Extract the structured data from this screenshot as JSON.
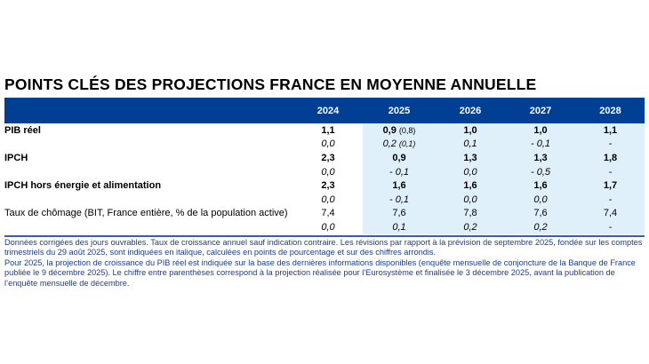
{
  "title": "POINTS CLÉS DES PROJECTIONS FRANCE EN MOYENNE ANNUELLE",
  "columns": [
    "2024",
    "2025",
    "2025",
    "2026",
    "2027",
    "2028"
  ],
  "years": [
    "2024",
    "2025",
    "2026",
    "2027",
    "2028"
  ],
  "rows": [
    {
      "label": "PIB réel",
      "bold": true,
      "values": [
        "1,1",
        "0,9",
        "1,0",
        "1,0",
        "1,1"
      ],
      "note_2025": "(0,8)",
      "revisions": [
        "0,0",
        "0,2",
        "0,1",
        "- 0,1",
        "-"
      ],
      "revision_note_2025": "(0,1)"
    },
    {
      "label": "IPCH",
      "bold": true,
      "values": [
        "2,3",
        "0,9",
        "1,3",
        "1,3",
        "1,8"
      ],
      "revisions": [
        "0,0",
        "- 0,1",
        "0,0",
        "- 0,5",
        "-"
      ]
    },
    {
      "label": "IPCH hors énergie et alimentation",
      "bold": true,
      "values": [
        "2,3",
        "1,6",
        "1,6",
        "1,6",
        "1,7"
      ],
      "revisions": [
        "0,0",
        "- 0,1",
        "0,0",
        "0,0",
        "-"
      ]
    },
    {
      "label": "Taux de chômage (BIT, France entière, % de la population active)",
      "bold": false,
      "values": [
        "7,4",
        "7,6",
        "7,8",
        "7,6",
        "7,4"
      ],
      "revisions": [
        "0,0",
        "0,1",
        "0,2",
        "0,2",
        "-"
      ]
    }
  ],
  "notes": [
    "Données corrigées des jours ouvrables. Taux de croissance annuel sauf indication contraire. Les révisions par rapport à la prévision de septembre 2025, fondée sur les comptes trimestriels du 29 août 2025, sont indiquées en italique, calculées en points de pourcentage et sur des chiffres arrondis.",
    "Pour 2025, la projection de croissance du PIB réel est indiquée sur la base des dernières informations disponibles (enquête mensuelle de conjoncture de la Banque de France publiée le 9 décembre 2025). Le chiffre entre parenthèses correspond à la projection réalisée pour l’Eurosystème et finalisée le 3 décembre 2025, avant la publication de l’enquête mensuelle de décembre."
  ],
  "colors": {
    "header_bg": "#003f94",
    "shade": "#dff0fb",
    "notes_text": "#1a3d8f"
  }
}
